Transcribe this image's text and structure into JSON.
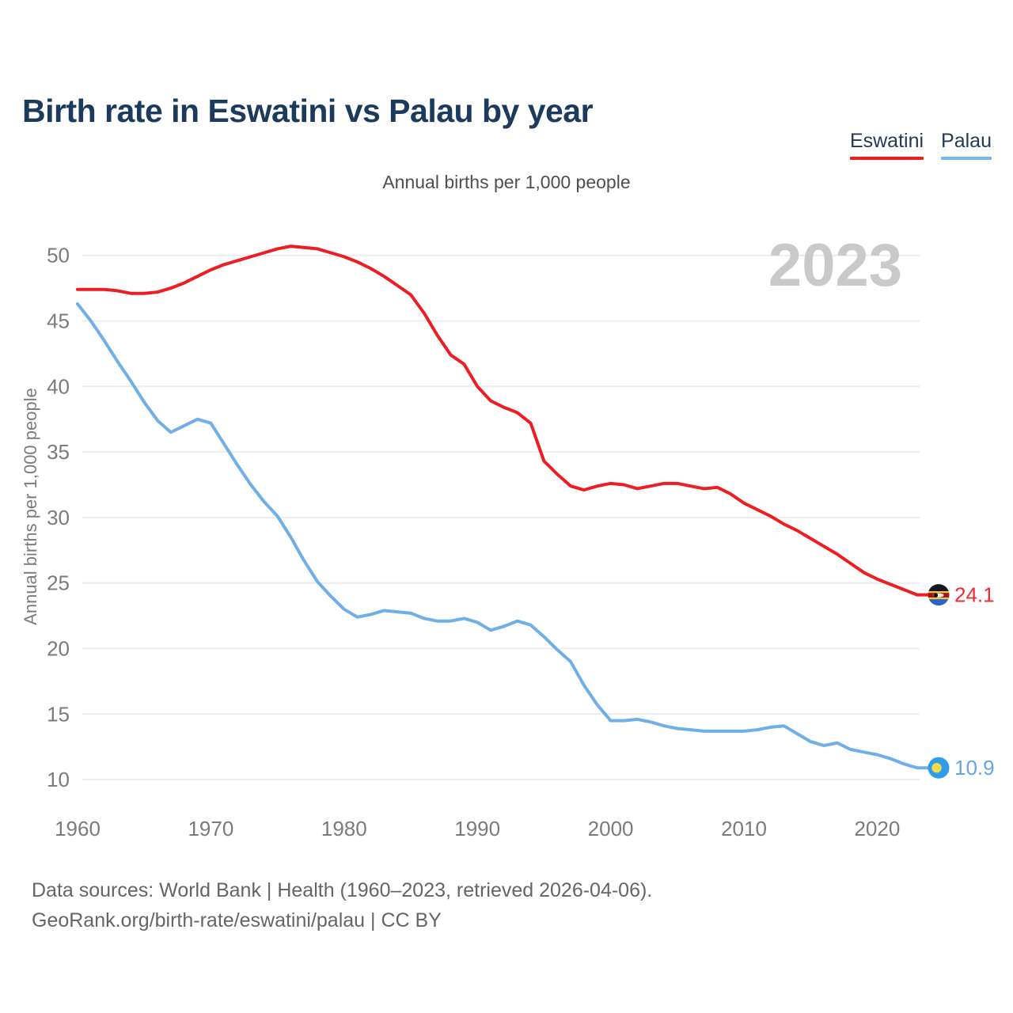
{
  "header": {
    "title": "Birth rate in Eswatini vs Palau by year",
    "subtitle": "Annual births per 1,000 people"
  },
  "legend": [
    {
      "label": "Eswatini",
      "color": "#ee1c25"
    },
    {
      "label": "Palau",
      "color": "#79b5e9"
    }
  ],
  "watermark": "2023",
  "footer": {
    "line1": "Data sources: World Bank | Health (1960–2023, retrieved 2026-04-06).",
    "line2": "GeoRank.org/birth-rate/eswatini/palau | CC BY"
  },
  "chart_data": {
    "type": "line",
    "title": "Annual births per 1,000 people",
    "xlabel": "",
    "ylabel": "Annual births per 1,000 people",
    "ylim": [
      8,
      52
    ],
    "grid": "horizontal",
    "legend_position": "top-right",
    "x_ticks": [
      1960,
      1970,
      1980,
      1990,
      2000,
      2010,
      2020
    ],
    "y_ticks": [
      10,
      15,
      20,
      25,
      30,
      35,
      40,
      45,
      50
    ],
    "x": [
      1960,
      1961,
      1962,
      1963,
      1964,
      1965,
      1966,
      1967,
      1968,
      1969,
      1970,
      1971,
      1972,
      1973,
      1974,
      1975,
      1976,
      1977,
      1978,
      1979,
      1980,
      1981,
      1982,
      1983,
      1984,
      1985,
      1986,
      1987,
      1988,
      1989,
      1990,
      1991,
      1992,
      1993,
      1994,
      1995,
      1996,
      1997,
      1998,
      1999,
      2000,
      2001,
      2002,
      2003,
      2004,
      2005,
      2006,
      2007,
      2008,
      2009,
      2010,
      2011,
      2012,
      2013,
      2014,
      2015,
      2016,
      2017,
      2018,
      2019,
      2020,
      2021,
      2022,
      2023
    ],
    "series": [
      {
        "name": "Eswatini",
        "color": "#ec1e24",
        "label_color": "#ee2a30",
        "flag_icon": "eswatini-flag-icon",
        "end_label": "24.1",
        "values": [
          47.4,
          47.4,
          47.4,
          47.3,
          47.1,
          47.1,
          47.2,
          47.5,
          47.9,
          48.4,
          48.9,
          49.3,
          49.6,
          49.9,
          50.2,
          50.5,
          50.7,
          50.6,
          50.5,
          50.2,
          49.9,
          49.5,
          49.0,
          48.4,
          47.7,
          47.0,
          45.6,
          43.9,
          42.4,
          41.7,
          40.0,
          38.9,
          38.4,
          38.0,
          37.2,
          34.3,
          33.3,
          32.4,
          32.1,
          32.4,
          32.6,
          32.5,
          32.2,
          32.4,
          32.6,
          32.6,
          32.4,
          32.2,
          32.3,
          31.8,
          31.1,
          30.6,
          30.1,
          29.5,
          29.0,
          28.4,
          27.8,
          27.2,
          26.5,
          25.8,
          25.3,
          24.9,
          24.5,
          24.1
        ]
      },
      {
        "name": "Palau",
        "color": "#70aee7",
        "label_color": "#62a6e3",
        "flag_icon": "palau-flag-icon",
        "end_label": "10.9",
        "values": [
          46.3,
          45.0,
          43.5,
          41.9,
          40.4,
          38.8,
          37.4,
          36.5,
          37.0,
          37.5,
          37.2,
          35.6,
          34.0,
          32.5,
          31.2,
          30.1,
          28.5,
          26.7,
          25.1,
          24.0,
          23.0,
          22.4,
          22.6,
          22.9,
          22.8,
          22.7,
          22.3,
          22.1,
          22.1,
          22.3,
          22.0,
          21.4,
          21.7,
          22.1,
          21.8,
          20.9,
          19.9,
          19.0,
          17.2,
          15.7,
          14.5,
          14.5,
          14.6,
          14.4,
          14.1,
          13.9,
          13.8,
          13.7,
          13.7,
          13.7,
          13.7,
          13.8,
          14.0,
          14.1,
          13.5,
          12.9,
          12.6,
          12.8,
          12.3,
          12.1,
          11.9,
          11.6,
          11.2,
          10.9
        ]
      }
    ]
  }
}
